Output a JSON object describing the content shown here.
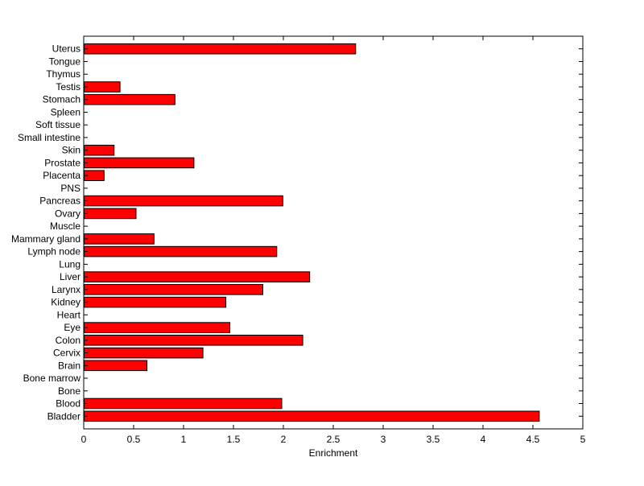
{
  "chart_data": {
    "type": "bar",
    "orientation": "horizontal",
    "title": "",
    "xlabel": "Enrichment",
    "ylabel": "",
    "xlim": [
      0,
      5
    ],
    "xticks": [
      0,
      0.5,
      1,
      1.5,
      2,
      2.5,
      3,
      3.5,
      4,
      4.5,
      5
    ],
    "xtick_labels": [
      "0",
      "0.5",
      "1",
      "1.5",
      "2",
      "2.5",
      "3",
      "3.5",
      "4",
      "4.5",
      "5"
    ],
    "grid": false,
    "bar_color": "#ff0000",
    "categories": [
      "Bladder",
      "Blood",
      "Bone",
      "Bone marrow",
      "Brain",
      "Cervix",
      "Colon",
      "Eye",
      "Heart",
      "Kidney",
      "Larynx",
      "Liver",
      "Lung",
      "Lymph node",
      "Mammary gland",
      "Muscle",
      "Ovary",
      "Pancreas",
      "PNS",
      "Placenta",
      "Prostate",
      "Skin",
      "Small intestine",
      "Soft tissue",
      "Spleen",
      "Stomach",
      "Testis",
      "Thymus",
      "Tongue",
      "Uterus"
    ],
    "values": [
      4.56,
      1.98,
      0,
      0,
      0.63,
      1.19,
      2.19,
      1.46,
      0,
      1.42,
      1.79,
      2.26,
      0,
      1.93,
      0.7,
      0,
      0.52,
      1.99,
      0,
      0.2,
      1.1,
      0.3,
      0,
      0,
      0,
      0.91,
      0.36,
      0,
      0,
      2.72
    ]
  }
}
